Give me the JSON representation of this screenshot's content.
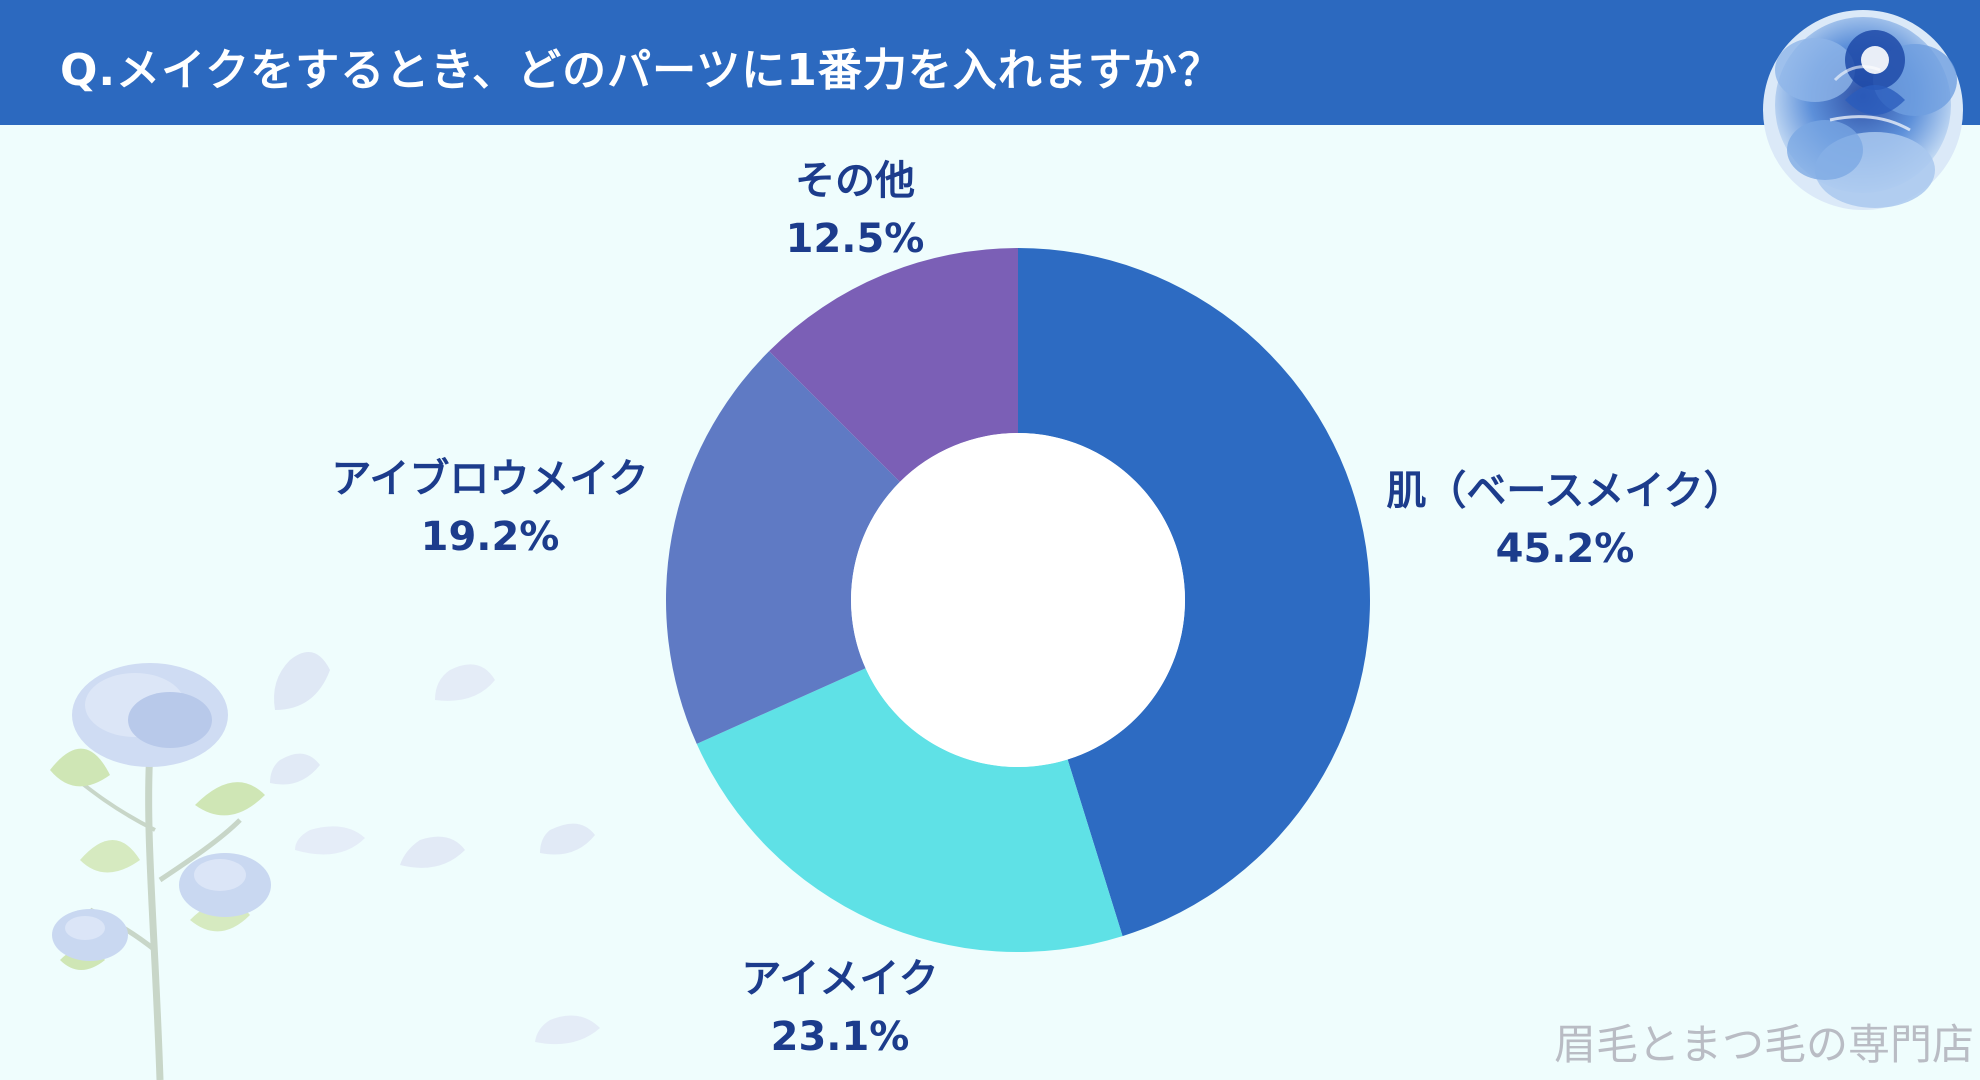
{
  "header": {
    "title": "Q.メイクをするとき、どのパーツに1番力を入れますか？"
  },
  "footer": {
    "credit": "眉毛とまつ毛の専門店"
  },
  "colors": {
    "header_bg": "#2c69bf",
    "background": "#effdfd",
    "label_text": "#1c3c8c"
  },
  "chart_data": {
    "type": "pie",
    "variant": "donut",
    "start_angle_deg": 0,
    "direction": "clockwise",
    "legend": "none",
    "slices": [
      {
        "label": "肌（ベースメイク）",
        "value": 45.2,
        "display": "45.2%",
        "color": "#2d6bc2"
      },
      {
        "label": "アイメイク",
        "value": 23.1,
        "display": "23.1%",
        "color": "#5fe1e6"
      },
      {
        "label": "アイブロウメイク",
        "value": 19.2,
        "display": "19.2%",
        "color": "#5f7ac4"
      },
      {
        "label": "その他",
        "value": 12.5,
        "display": "12.5%",
        "color": "#7b5fb6"
      }
    ]
  }
}
